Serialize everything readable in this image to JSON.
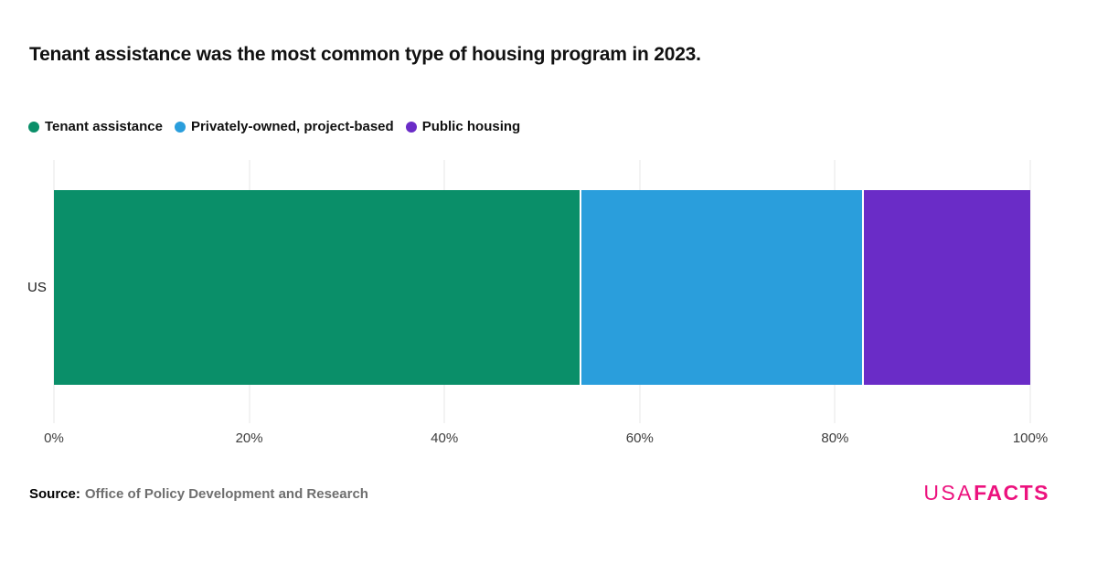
{
  "title": "Tenant assistance was the most common type of housing program in 2023.",
  "legend": [
    {
      "label": "Tenant assistance",
      "color": "#0A8F69"
    },
    {
      "label": "Privately-owned, project-based",
      "color": "#2A9EDC"
    },
    {
      "label": "Public housing",
      "color": "#6A2CC7"
    }
  ],
  "chart_data": {
    "type": "bar",
    "orientation": "horizontal",
    "stacked": true,
    "title": "Tenant assistance was the most common type of housing program in 2023.",
    "categories": [
      "US"
    ],
    "series": [
      {
        "name": "Tenant assistance",
        "values": [
          53.8
        ],
        "color": "#0A8F69"
      },
      {
        "name": "Privately-owned, project-based",
        "values": [
          29.0
        ],
        "color": "#2A9EDC"
      },
      {
        "name": "Public housing",
        "values": [
          17.2
        ],
        "color": "#6A2CC7"
      }
    ],
    "xlabel": "",
    "ylabel": "",
    "xlim": [
      0,
      100
    ],
    "x_ticks": [
      "0%",
      "20%",
      "40%",
      "60%",
      "80%",
      "100%"
    ],
    "grid": "vertical",
    "legend_position": "top"
  },
  "axis": {
    "category_label": "US"
  },
  "footer": {
    "source_label": "Source:",
    "source_value": "Office of Policy Development and Research",
    "logo_usa": "USA",
    "logo_facts": "FACTS",
    "logo_color": "#EC127E"
  }
}
